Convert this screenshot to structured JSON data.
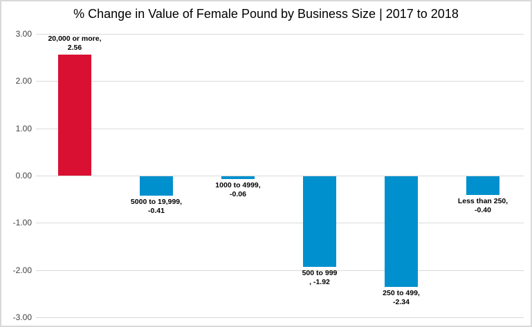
{
  "title": "% Change in Value of Female Pound by Business Size | 2017 to 2018",
  "colors": {
    "positive_bar": "#da1032",
    "negative_bar": "#0090ce",
    "gridline": "#d9d9d9",
    "border": "#d8d8d8",
    "axis_text": "#3f3f3f",
    "label_text": "#000000",
    "background": "#ffffff"
  },
  "chart_data": {
    "type": "bar",
    "title": "% Change in Value of Female Pound by Business Size | 2017 to 2018",
    "categories": [
      "20,000 or more",
      "5000 to 19,999",
      "1000 to 4999",
      "500 to 999",
      "250 to 499",
      "Less than 250"
    ],
    "values": [
      2.56,
      -0.41,
      -0.06,
      -1.92,
      -2.34,
      -0.4
    ],
    "data_labels": [
      [
        "20,000 or more,",
        "2.56"
      ],
      [
        "5000 to 19,999,",
        "-0.41"
      ],
      [
        "1000 to 4999,",
        "-0.06"
      ],
      [
        "500 to 999",
        ", -1.92"
      ],
      [
        "250 to 499,",
        "-2.34"
      ],
      [
        "Less than 250,",
        "-0.40"
      ]
    ],
    "y_ticks": [
      "3.00",
      "2.00",
      "1.00",
      "0.00",
      "-1.00",
      "-2.00",
      "-3.00"
    ],
    "y_tick_values": [
      3,
      2,
      1,
      0,
      -1,
      -2,
      -3
    ],
    "ylim": [
      -3,
      3
    ],
    "xlabel": "",
    "ylabel": "",
    "grid": true,
    "legend": false,
    "bar_color_roles": [
      "positive_bar",
      "negative_bar",
      "negative_bar",
      "negative_bar",
      "negative_bar",
      "negative_bar"
    ]
  }
}
